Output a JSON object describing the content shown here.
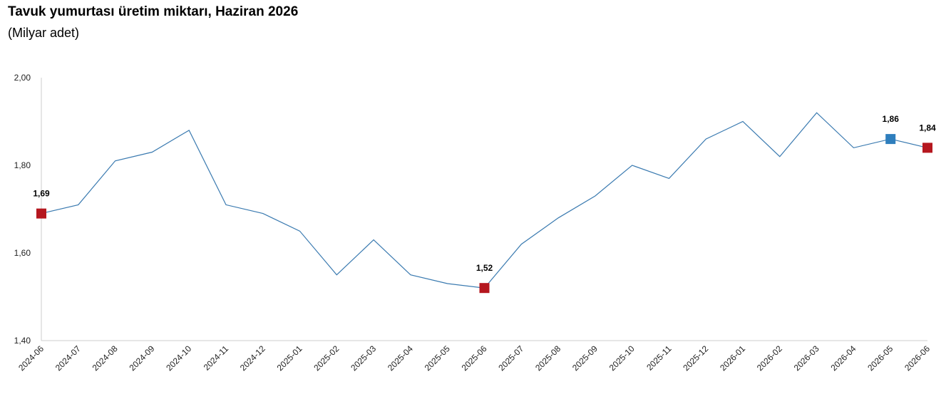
{
  "chart_data": {
    "type": "line",
    "title": "Tavuk yumurtası üretim miktarı, Haziran 2026",
    "subtitle": "(Milyar adet)",
    "xlabel": "",
    "ylabel": "",
    "ylim": [
      1.4,
      2.0
    ],
    "yticks": [
      1.4,
      1.6,
      1.8,
      2.0
    ],
    "ytick_labels": [
      "1,40",
      "1,60",
      "1,80",
      "2,00"
    ],
    "grid": false,
    "legend": "none",
    "categories": [
      "2024-06",
      "2024-07",
      "2024-08",
      "2024-09",
      "2024-10",
      "2024-11",
      "2024-12",
      "2025-01",
      "2025-02",
      "2025-03",
      "2025-04",
      "2025-05",
      "2025-06",
      "2025-07",
      "2025-08",
      "2025-09",
      "2025-10",
      "2025-11",
      "2025-12",
      "2026-01",
      "2026-02",
      "2026-03",
      "2026-04",
      "2026-05",
      "2026-06"
    ],
    "series": [
      {
        "values": [
          1.69,
          1.71,
          1.81,
          1.83,
          1.88,
          1.71,
          1.69,
          1.65,
          1.55,
          1.63,
          1.55,
          1.53,
          1.52,
          1.62,
          1.68,
          1.73,
          1.8,
          1.77,
          1.86,
          1.9,
          1.82,
          1.92,
          1.84,
          1.86,
          1.84
        ],
        "color": "#3a7ab0"
      }
    ],
    "highlights": [
      {
        "index": 0,
        "label": "1,69",
        "color": "#b5171f"
      },
      {
        "index": 12,
        "label": "1,52",
        "color": "#b5171f"
      },
      {
        "index": 23,
        "label": "1,86",
        "color": "#2e7ebd"
      },
      {
        "index": 24,
        "label": "1,84",
        "color": "#b5171f"
      }
    ],
    "axis_color": "#cccccc"
  }
}
